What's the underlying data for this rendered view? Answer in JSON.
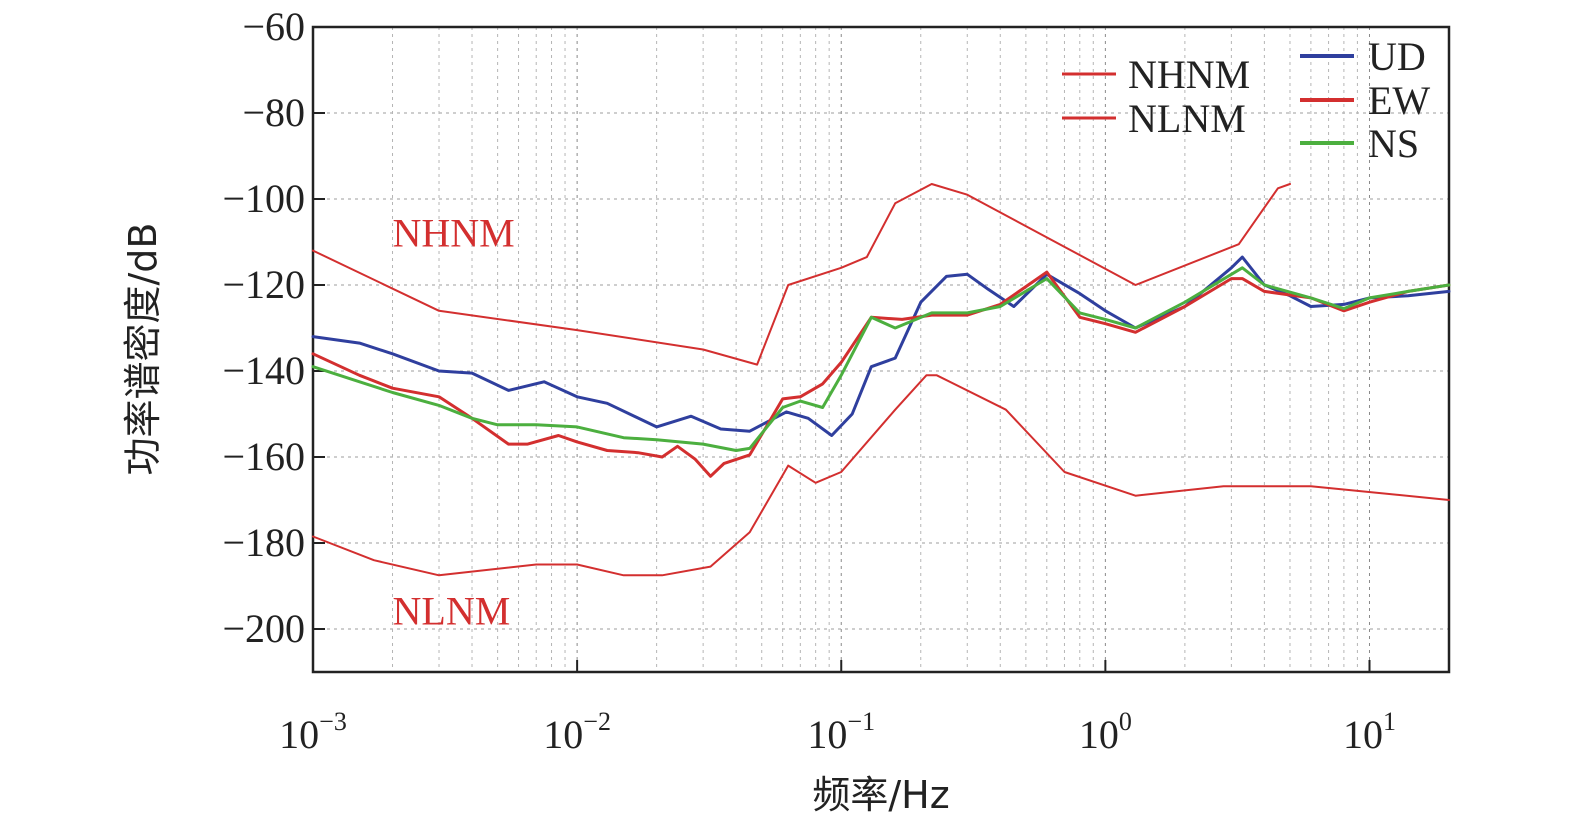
{
  "chart_data": {
    "type": "line",
    "xlabel": "频率/Hz",
    "ylabel": "功率谱密度/dB",
    "xscale": "log",
    "xlim": [
      0.001,
      20
    ],
    "ylim": [
      -210,
      -60
    ],
    "y_ticks": [
      -60,
      -80,
      -100,
      -120,
      -140,
      -160,
      -180,
      -200
    ],
    "y_tick_labels": [
      "−60",
      "−80",
      "−100",
      "−120",
      "−140",
      "−160",
      "−180",
      "−200"
    ],
    "x_ticks": [
      {
        "value": 0.001,
        "base": "10",
        "exp": "−3"
      },
      {
        "value": 0.01,
        "base": "10",
        "exp": "−2"
      },
      {
        "value": 0.1,
        "base": "10",
        "exp": "−1"
      },
      {
        "value": 1,
        "base": "10",
        "exp": "0"
      },
      {
        "value": 10,
        "base": "10",
        "exp": "1"
      }
    ],
    "grid": true,
    "legend_position": "top-right",
    "annotations": [
      {
        "text": "NHNM",
        "color": "#d32f2f",
        "x": 0.002,
        "y": -111
      },
      {
        "text": "NLNM",
        "color": "#d32f2f",
        "x": 0.002,
        "y": -199
      }
    ],
    "series": [
      {
        "name": "NHNM",
        "color": "#d32f2f",
        "width": 2,
        "x": [
          0.001,
          0.003,
          0.01,
          0.03,
          0.048,
          0.063,
          0.1,
          0.125,
          0.16,
          0.22,
          0.3,
          1.3,
          3.2,
          4.5,
          5
        ],
        "y": [
          -112,
          -126,
          -130.5,
          -135,
          -138.5,
          -120,
          -116,
          -113.5,
          -101,
          -96.5,
          -99,
          -120,
          -110.5,
          -97.5,
          -96.5
        ]
      },
      {
        "name": "NLNM",
        "color": "#d32f2f",
        "width": 2,
        "x": [
          0.001,
          0.0017,
          0.003,
          0.007,
          0.01,
          0.015,
          0.021,
          0.032,
          0.045,
          0.063,
          0.08,
          0.1,
          0.16,
          0.21,
          0.23,
          0.42,
          0.7,
          1.3,
          2.8,
          6,
          20
        ],
        "y": [
          -178.5,
          -184,
          -187.5,
          -185,
          -185,
          -187.5,
          -187.5,
          -185.5,
          -177.5,
          -162,
          -166,
          -163.5,
          -149,
          -141,
          -141,
          -149,
          -163.5,
          -169,
          -166.8,
          -166.8,
          -170
        ]
      },
      {
        "name": "UD",
        "color": "#2f3f9e",
        "width": 3,
        "x": [
          0.001,
          0.0015,
          0.002,
          0.003,
          0.004,
          0.0055,
          0.0075,
          0.01,
          0.013,
          0.02,
          0.027,
          0.035,
          0.045,
          0.062,
          0.075,
          0.092,
          0.11,
          0.13,
          0.16,
          0.2,
          0.25,
          0.3,
          0.36,
          0.45,
          0.6,
          0.8,
          1.0,
          1.3,
          2,
          3,
          3.3,
          4,
          5,
          6,
          8,
          10,
          14,
          20
        ],
        "y": [
          -132,
          -133.5,
          -136,
          -140,
          -140.5,
          -144.5,
          -142.5,
          -146,
          -147.5,
          -153,
          -150.5,
          -153.5,
          -154,
          -149.5,
          -151,
          -155,
          -150,
          -139,
          -137,
          -124,
          -118,
          -117.5,
          -121,
          -125,
          -117.5,
          -122,
          -126,
          -130,
          -125,
          -116,
          -113.5,
          -120,
          -122.5,
          -125,
          -124.5,
          -123,
          -122.5,
          -121.5
        ]
      },
      {
        "name": "EW",
        "color": "#d32f2f",
        "width": 3,
        "x": [
          0.001,
          0.0015,
          0.002,
          0.003,
          0.004,
          0.0055,
          0.0065,
          0.0085,
          0.01,
          0.013,
          0.017,
          0.021,
          0.024,
          0.028,
          0.032,
          0.036,
          0.045,
          0.06,
          0.07,
          0.085,
          0.1,
          0.13,
          0.17,
          0.22,
          0.3,
          0.4,
          0.6,
          0.8,
          1.0,
          1.3,
          2,
          3,
          3.3,
          4,
          6,
          8,
          10,
          14,
          20
        ],
        "y": [
          -136,
          -141,
          -144,
          -146,
          -151,
          -157,
          -157,
          -155,
          -156.5,
          -158.5,
          -159,
          -160,
          -157.5,
          -160.5,
          -164.5,
          -161.5,
          -159.5,
          -146.5,
          -146,
          -143,
          -138,
          -127.5,
          -128,
          -127,
          -127,
          -124.5,
          -117,
          -127.5,
          -129,
          -131,
          -125,
          -118.5,
          -118.5,
          -121.5,
          -123,
          -126,
          -124,
          -121.5,
          -120
        ]
      },
      {
        "name": "NS",
        "color": "#4caf3f",
        "width": 3,
        "x": [
          0.001,
          0.002,
          0.003,
          0.004,
          0.005,
          0.007,
          0.01,
          0.015,
          0.02,
          0.03,
          0.04,
          0.045,
          0.06,
          0.07,
          0.085,
          0.1,
          0.13,
          0.16,
          0.22,
          0.3,
          0.4,
          0.6,
          0.8,
          1.0,
          1.3,
          2,
          3,
          3.3,
          4,
          6,
          8,
          10,
          14,
          20
        ],
        "y": [
          -139,
          -145,
          -148,
          -151,
          -152.5,
          -152.5,
          -153,
          -155.5,
          -156,
          -157,
          -158.5,
          -158,
          -148.5,
          -147,
          -148.5,
          -141,
          -127.5,
          -130,
          -126.5,
          -126.5,
          -125,
          -118.5,
          -126.5,
          -128,
          -130,
          -124,
          -117.5,
          -116,
          -120,
          -123,
          -125.5,
          -123,
          -121.5,
          -120
        ]
      }
    ]
  }
}
